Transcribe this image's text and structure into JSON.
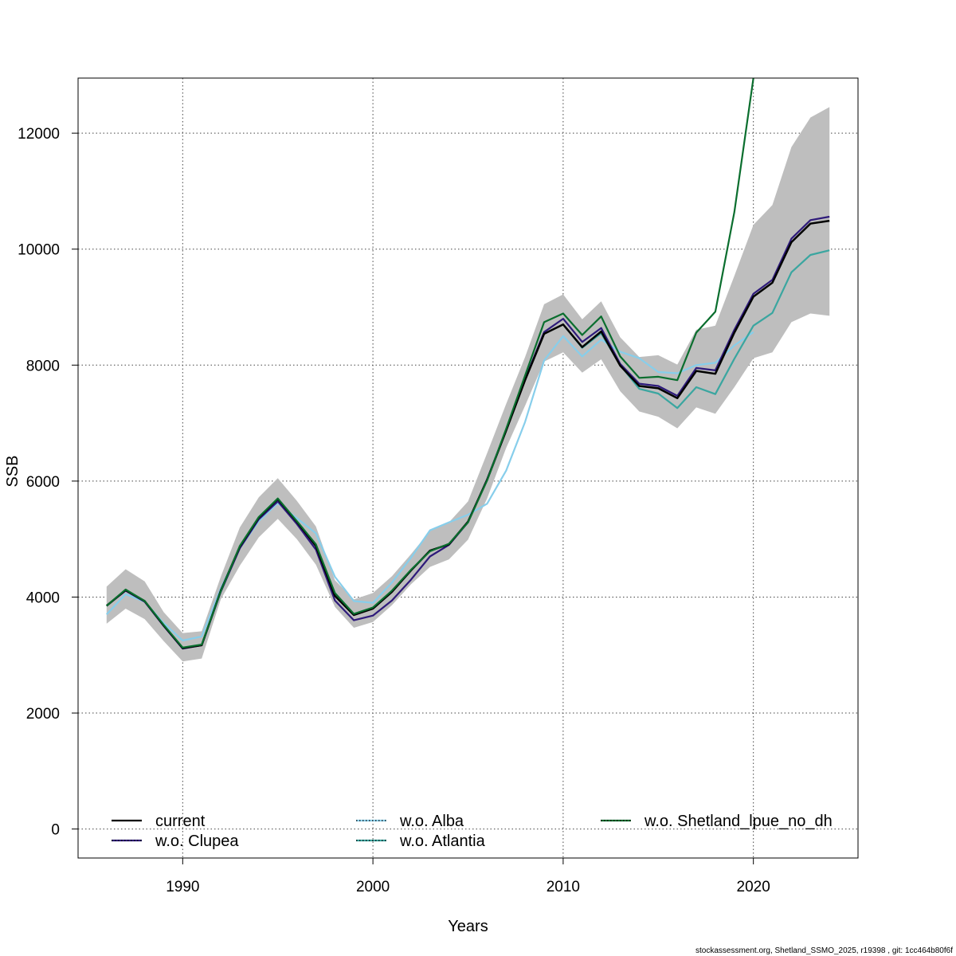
{
  "footer": "stockassessment.org, Shetland_SSMO_2025, r19398 , git: 1cc464b80f6f",
  "chart_data": {
    "type": "line",
    "xlabel": "Years",
    "ylabel": "SSB",
    "xlim": [
      1984.5,
      2025.5
    ],
    "ylim": [
      -500,
      12950
    ],
    "x_ticks": [
      1990,
      2000,
      2010,
      2020
    ],
    "y_ticks": [
      0,
      2000,
      4000,
      6000,
      8000,
      10000,
      12000
    ],
    "grid": true,
    "legend_position": "bottom",
    "x": [
      1986,
      1987,
      1988,
      1989,
      1990,
      1991,
      1992,
      1993,
      1994,
      1995,
      1996,
      1997,
      1998,
      1999,
      2000,
      2001,
      2002,
      2003,
      2004,
      2005,
      2006,
      2007,
      2008,
      2009,
      2010,
      2011,
      2012,
      2013,
      2014,
      2015,
      2016,
      2017,
      2018,
      2019,
      2020,
      2021,
      2022,
      2023,
      2024
    ],
    "confidence_band": {
      "color": "#bebebe",
      "lower": [
        3540,
        3800,
        3620,
        3240,
        2890,
        2940,
        3960,
        4540,
        5030,
        5350,
        5000,
        4560,
        3830,
        3470,
        3570,
        3860,
        4220,
        4520,
        4650,
        4990,
        5700,
        6570,
        7300,
        8060,
        8220,
        7870,
        8100,
        7550,
        7200,
        7110,
        6910,
        7270,
        7160,
        7620,
        8120,
        8220,
        8740,
        8890,
        8850
      ],
      "upper": [
        4180,
        4480,
        4270,
        3740,
        3380,
        3410,
        4350,
        5200,
        5720,
        6050,
        5660,
        5220,
        4290,
        3960,
        4070,
        4360,
        4740,
        5140,
        5290,
        5650,
        6480,
        7330,
        8140,
        9050,
        9220,
        8790,
        9100,
        8480,
        8140,
        8170,
        8010,
        8610,
        8680,
        9540,
        10420,
        10760,
        11760,
        12270,
        12450
      ]
    },
    "series": [
      {
        "name": "current",
        "color": "#000000",
        "dash": "solid",
        "values": [
          3850,
          4120,
          3930,
          3510,
          3120,
          3170,
          4110,
          4870,
          5370,
          5690,
          5300,
          4880,
          4020,
          3690,
          3800,
          4090,
          4460,
          4800,
          4910,
          5300,
          6020,
          6870,
          7740,
          8540,
          8700,
          8310,
          8580,
          7990,
          7640,
          7600,
          7430,
          7900,
          7850,
          8560,
          9180,
          9420,
          10120,
          10440,
          10490
        ]
      },
      {
        "name": "w.o. Clupea",
        "color": "#2e1a7a",
        "dash": "dotted",
        "values": [
          3850,
          4110,
          3920,
          3500,
          3110,
          3170,
          4090,
          4840,
          5340,
          5650,
          5260,
          4820,
          3940,
          3600,
          3680,
          3940,
          4300,
          4700,
          4900,
          5290,
          6030,
          6880,
          7760,
          8570,
          8800,
          8400,
          8640,
          8020,
          7680,
          7640,
          7470,
          7950,
          7910,
          8610,
          9230,
          9470,
          10180,
          10500,
          10560
        ]
      },
      {
        "name": "w.o. Alba",
        "color": "#87ceeb",
        "dash": "dotted",
        "values": [
          3700,
          4050,
          3920,
          3550,
          3250,
          3320,
          4150,
          4840,
          5310,
          5620,
          5360,
          5100,
          4350,
          3930,
          3900,
          4250,
          4680,
          5150,
          5290,
          5420,
          5610,
          6180,
          7020,
          8080,
          8500,
          8150,
          8440,
          8230,
          8120,
          7880,
          7860,
          8000,
          8040,
          8340,
          8570,
          null,
          null,
          null,
          null
        ]
      },
      {
        "name": "w.o. Atlantia",
        "color": "#3aa6a0",
        "dash": "dotted",
        "values": [
          null,
          null,
          null,
          null,
          null,
          null,
          null,
          null,
          null,
          null,
          null,
          null,
          null,
          null,
          null,
          null,
          null,
          null,
          null,
          null,
          null,
          null,
          null,
          null,
          8700,
          8300,
          8550,
          8000,
          7590,
          7510,
          7260,
          7620,
          7500,
          8110,
          8680,
          8900,
          9600,
          9900,
          9980
        ]
      },
      {
        "name": "w.o. Shetland_lpue_no_dh",
        "color": "#0a6e2e",
        "dash": "dotted",
        "values": [
          3850,
          4130,
          3930,
          3520,
          3130,
          3180,
          4100,
          4880,
          5380,
          5700,
          5310,
          4910,
          4070,
          3710,
          3820,
          4110,
          4470,
          4790,
          4920,
          5290,
          6010,
          6900,
          7820,
          8740,
          8890,
          8520,
          8840,
          8150,
          7780,
          7800,
          7740,
          8560,
          8920,
          10640,
          12950,
          null,
          null,
          null,
          null
        ]
      }
    ]
  }
}
